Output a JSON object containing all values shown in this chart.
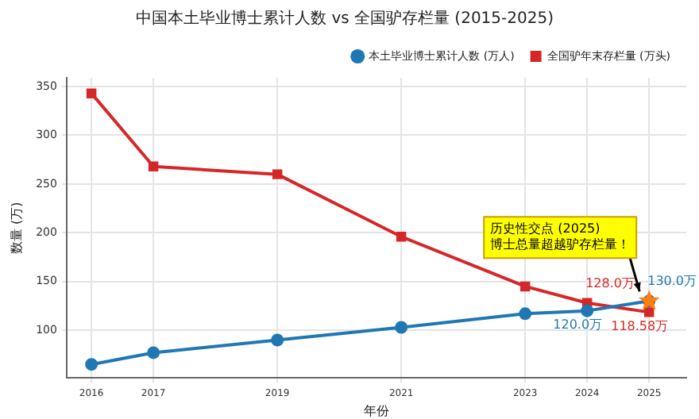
{
  "chart_data": {
    "type": "line",
    "title": "中国本土毕业博士累计人数 vs 全国驴存栏量 (2015-2025)",
    "xlabel": "年份",
    "ylabel": "数量 (万)",
    "x": [
      2016,
      2017,
      2019,
      2021,
      2023,
      2024,
      2025
    ],
    "series": [
      {
        "name": "本土毕业博士累计人数 (万人)",
        "color": "#1f77b4",
        "marker": "circle",
        "values": [
          65,
          77,
          90,
          103,
          117,
          120,
          130
        ],
        "value_labels": [
          null,
          null,
          null,
          null,
          null,
          "120.0万",
          "130.0万"
        ]
      },
      {
        "name": "全国驴年末存栏量 (万头)",
        "color": "#d62728",
        "marker": "square",
        "values": [
          343,
          268,
          260,
          196,
          145,
          128,
          118.58
        ],
        "value_labels": [
          null,
          null,
          null,
          null,
          null,
          "128.0万",
          "118.58万"
        ]
      },
      {
        "type": "scatter",
        "color": "#ff7f0e",
        "marker": "star",
        "x": [
          2025
        ],
        "values": [
          130
        ]
      }
    ],
    "xlim": [
      2015.6,
      2025.6
    ],
    "xticks": [
      2016,
      2017,
      2019,
      2021,
      2023,
      2024,
      2025
    ],
    "ylim": [
      51,
      359
    ],
    "yticks": [
      100,
      150,
      200,
      250,
      300,
      350
    ],
    "grid": true,
    "legend": "top right",
    "line_style": "solid",
    "annotations": [
      {
        "text": "历史性交点 (2025)\n博士总量超越驴存栏量！",
        "x": 2025,
        "y": 130
      }
    ]
  }
}
